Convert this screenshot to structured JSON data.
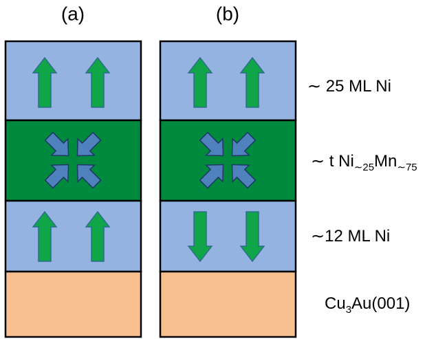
{
  "panels": [
    {
      "label": "(a)"
    },
    {
      "label": "(b)"
    }
  ],
  "layers": [
    {
      "label": [
        "∼ 25 ML Ni"
      ]
    },
    {
      "label": [
        "∼ t Ni",
        "∼25",
        "Mn",
        "∼75"
      ]
    },
    {
      "label": [
        "∼12 ML Ni"
      ]
    },
    {
      "label": [
        "Cu",
        "3",
        "Au(001)"
      ]
    }
  ]
}
